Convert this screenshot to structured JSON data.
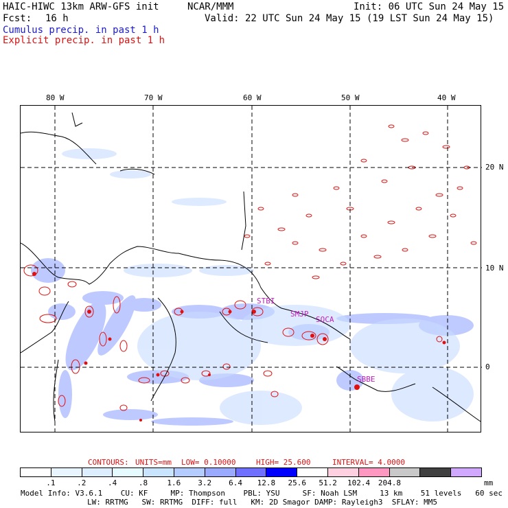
{
  "header": {
    "title_left": "HAIC-HIWC 13km ARW-GFS init",
    "model_center": "NCAR/MMM",
    "init": "Init: 06 UTC Sun 24 May 15",
    "fcst_label": "Fcst:",
    "fcst_value": "16 h",
    "valid": "Valid: 22 UTC Sun 24 May 15 (19 LST Sun 24 May 15)",
    "cumulus_legend": "Cumulus precip. in past 1 h",
    "explicit_legend": "Explicit precip. in past 1 h"
  },
  "map": {
    "lon_labels": [
      "80 W",
      "70 W",
      "60 W",
      "50 W",
      "40 W"
    ],
    "lat_labels": [
      "20 N",
      "10 N",
      "0"
    ],
    "stations": [
      "STBI",
      "SMJP",
      "SOCA",
      "SBBE"
    ],
    "colors": {
      "land": "#000000",
      "cumulus": "#7f96ff",
      "explicit": "#e01010",
      "grid": "#000000"
    }
  },
  "contours": {
    "label": "CONTOURS:",
    "units": "UNITS=mm",
    "low": "LOW= 0.10000",
    "high": "HIGH= 25.600",
    "interval": "INTERVAL= 4.0000"
  },
  "colorbar": {
    "unit": "mm",
    "colors": [
      "#ffffff",
      "#e8f4ff",
      "#dceeff",
      "#e6fbff",
      "#c8e4ff",
      "#b4ccff",
      "#9aaaff",
      "#7070ff",
      "#0000ff",
      "#ffffff",
      "#ffd0e0",
      "#ff98c0",
      "#c8c8c8",
      "#404040",
      "#d0a8ff"
    ],
    "ticks": [
      ".1",
      ".2",
      ".4",
      ".8",
      "1.6",
      "3.2",
      "6.4",
      "12.8",
      "25.6",
      "51.2",
      "102.4",
      "204.8"
    ]
  },
  "info": {
    "line1": "Model Info: V3.6.1    CU: KF     MP: Thompson    PBL: YSU     SF: Noah LSM     13 km    51 levels   60 sec",
    "line2": "LW: RRTMG   SW: RRTMG  DIFF: full   KM: 2D Smagor DAMP: Rayleigh3  SFLAY: MM5"
  }
}
